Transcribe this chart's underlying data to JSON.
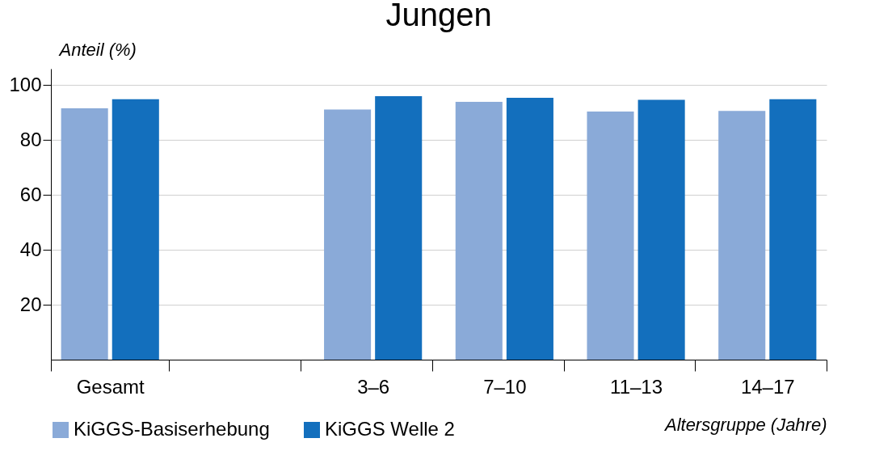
{
  "chart_data": {
    "type": "bar",
    "title": "Jungen",
    "xlabel": "Altersgruppe (Jahre)",
    "ylabel": "Anteil (%)",
    "categories": [
      "Gesamt",
      null,
      "3–6",
      "7–10",
      "11–13",
      "14–17"
    ],
    "series": [
      {
        "name": "KiGGS-Basiserhebung",
        "color": "#8aaad8",
        "values": [
          91.6,
          null,
          91.1,
          93.9,
          90.4,
          90.6
        ]
      },
      {
        "name": "KiGGS Welle 2",
        "color": "#136fbd",
        "values": [
          94.9,
          null,
          96.0,
          95.4,
          94.7,
          94.9
        ]
      }
    ],
    "ylim": [
      0,
      106
    ],
    "yticks": [
      20,
      40,
      60,
      80,
      100
    ],
    "grid": "y",
    "legend": "bottom left"
  }
}
